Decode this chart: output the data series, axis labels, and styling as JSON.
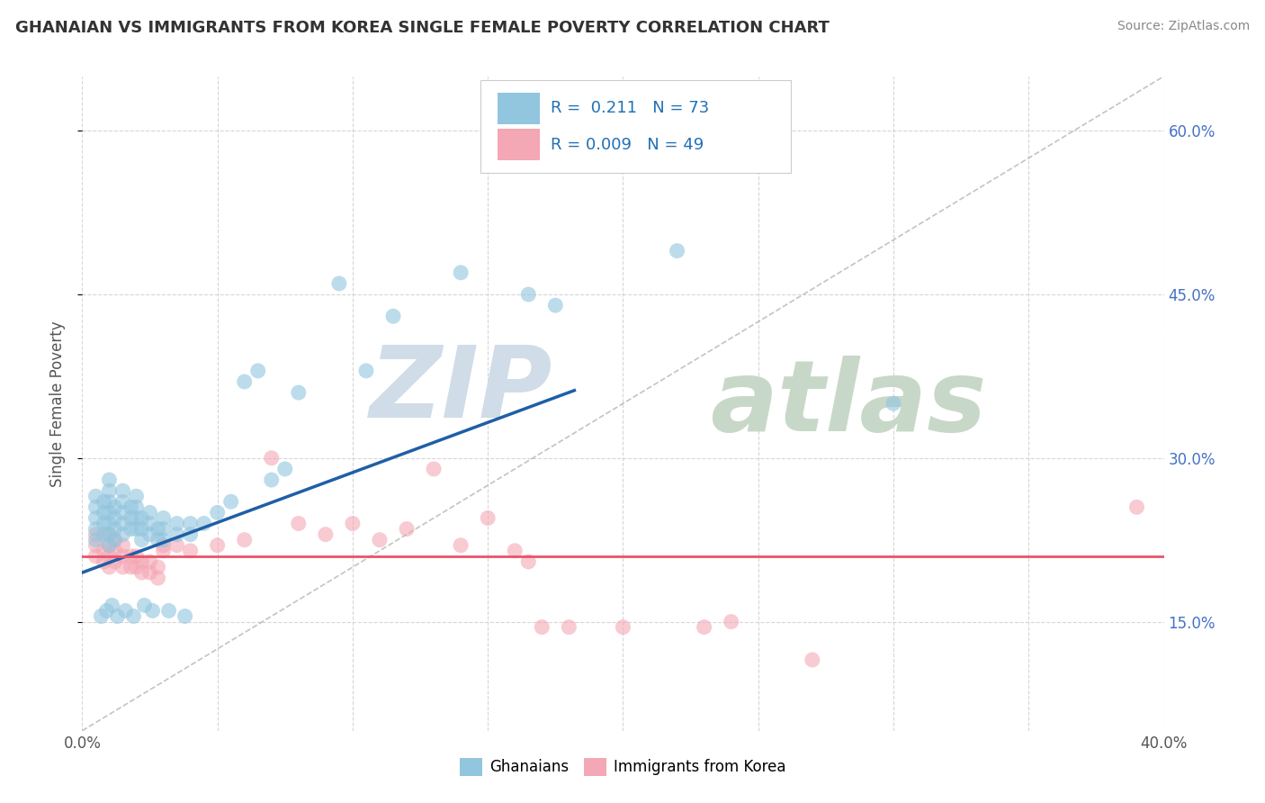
{
  "title": "GHANAIAN VS IMMIGRANTS FROM KOREA SINGLE FEMALE POVERTY CORRELATION CHART",
  "source": "Source: ZipAtlas.com",
  "ylabel": "Single Female Poverty",
  "xlim": [
    0.0,
    0.4
  ],
  "ylim": [
    0.05,
    0.65
  ],
  "blue_R": "0.211",
  "blue_N": "73",
  "pink_R": "0.009",
  "pink_N": "49",
  "blue_color": "#92c5de",
  "pink_color": "#f4a7b4",
  "blue_line_color": "#1f5fa6",
  "pink_line_color": "#e8546a",
  "grid_color": "#cccccc",
  "background_color": "#ffffff",
  "watermark_zip_color": "#d0dce8",
  "watermark_atlas_color": "#c8d8c8",
  "blue_scatter_x": [
    0.005,
    0.005,
    0.005,
    0.005,
    0.005,
    0.008,
    0.008,
    0.008,
    0.008,
    0.01,
    0.01,
    0.01,
    0.01,
    0.01,
    0.01,
    0.01,
    0.012,
    0.012,
    0.012,
    0.012,
    0.015,
    0.015,
    0.015,
    0.015,
    0.015,
    0.018,
    0.018,
    0.018,
    0.02,
    0.02,
    0.02,
    0.02,
    0.022,
    0.022,
    0.022,
    0.025,
    0.025,
    0.025,
    0.028,
    0.028,
    0.03,
    0.03,
    0.03,
    0.035,
    0.035,
    0.04,
    0.04,
    0.045,
    0.05,
    0.055,
    0.06,
    0.065,
    0.07,
    0.075,
    0.08,
    0.095,
    0.105,
    0.115,
    0.14,
    0.165,
    0.175,
    0.22,
    0.3,
    0.007,
    0.009,
    0.011,
    0.013,
    0.016,
    0.019,
    0.023,
    0.026,
    0.032,
    0.038
  ],
  "blue_scatter_y": [
    0.225,
    0.235,
    0.245,
    0.255,
    0.265,
    0.23,
    0.24,
    0.25,
    0.26,
    0.22,
    0.23,
    0.24,
    0.25,
    0.26,
    0.27,
    0.28,
    0.225,
    0.235,
    0.245,
    0.255,
    0.23,
    0.24,
    0.25,
    0.26,
    0.27,
    0.235,
    0.245,
    0.255,
    0.235,
    0.245,
    0.255,
    0.265,
    0.225,
    0.235,
    0.245,
    0.23,
    0.24,
    0.25,
    0.225,
    0.235,
    0.225,
    0.235,
    0.245,
    0.23,
    0.24,
    0.23,
    0.24,
    0.24,
    0.25,
    0.26,
    0.37,
    0.38,
    0.28,
    0.29,
    0.36,
    0.46,
    0.38,
    0.43,
    0.47,
    0.45,
    0.44,
    0.49,
    0.35,
    0.155,
    0.16,
    0.165,
    0.155,
    0.16,
    0.155,
    0.165,
    0.16,
    0.16,
    0.155
  ],
  "pink_scatter_x": [
    0.005,
    0.005,
    0.005,
    0.008,
    0.008,
    0.01,
    0.01,
    0.01,
    0.01,
    0.012,
    0.012,
    0.012,
    0.015,
    0.015,
    0.015,
    0.018,
    0.018,
    0.02,
    0.02,
    0.022,
    0.022,
    0.025,
    0.025,
    0.028,
    0.028,
    0.03,
    0.03,
    0.035,
    0.04,
    0.05,
    0.06,
    0.07,
    0.08,
    0.09,
    0.1,
    0.11,
    0.12,
    0.13,
    0.14,
    0.15,
    0.16,
    0.165,
    0.17,
    0.18,
    0.2,
    0.23,
    0.24,
    0.27,
    0.39
  ],
  "pink_scatter_y": [
    0.21,
    0.22,
    0.23,
    0.205,
    0.215,
    0.2,
    0.21,
    0.22,
    0.23,
    0.205,
    0.215,
    0.225,
    0.2,
    0.21,
    0.22,
    0.2,
    0.21,
    0.2,
    0.21,
    0.195,
    0.205,
    0.195,
    0.205,
    0.19,
    0.2,
    0.215,
    0.22,
    0.22,
    0.215,
    0.22,
    0.225,
    0.3,
    0.24,
    0.23,
    0.24,
    0.225,
    0.235,
    0.29,
    0.22,
    0.245,
    0.215,
    0.205,
    0.145,
    0.145,
    0.145,
    0.145,
    0.15,
    0.115,
    0.255
  ],
  "blue_line_x0": 0.0,
  "blue_line_x1": 0.182,
  "blue_line_y0": 0.195,
  "blue_line_y1": 0.362,
  "pink_line_x0": 0.0,
  "pink_line_x1": 0.4,
  "pink_line_y0": 0.21,
  "pink_line_y1": 0.21,
  "dash_line_x0": 0.0,
  "dash_line_y0": 0.05,
  "dash_line_x1": 0.4,
  "dash_line_y1": 0.65
}
